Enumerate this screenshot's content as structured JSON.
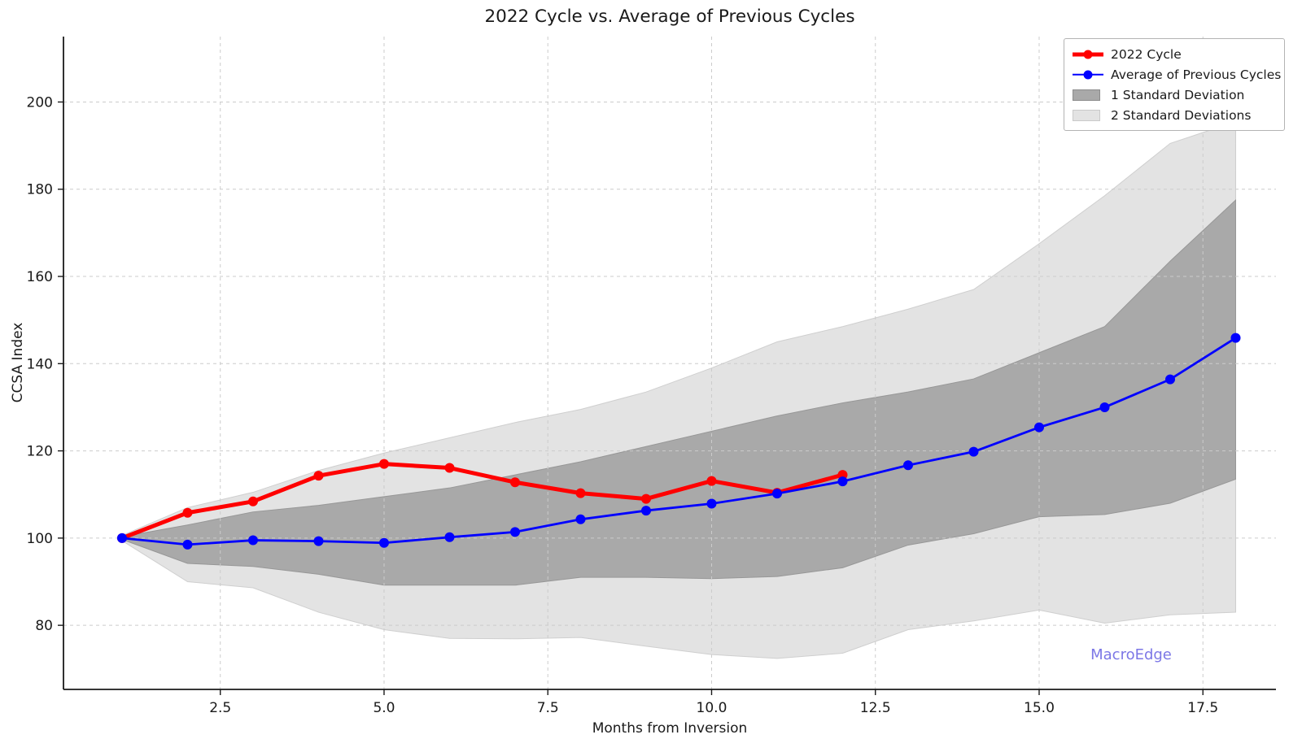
{
  "page": {
    "title": "2022 Cycle vs. Average of Previous Cycles"
  },
  "axes": {
    "x_label": "Months from Inversion",
    "y_label": "CCSA Index",
    "x_ticks": [
      {
        "v": 2.5,
        "label": "2.5"
      },
      {
        "v": 5,
        "label": "5.0"
      },
      {
        "v": 7.5,
        "label": "7.5"
      },
      {
        "v": 10,
        "label": "10.0"
      },
      {
        "v": 12.5,
        "label": "12.5"
      },
      {
        "v": 15,
        "label": "15.0"
      },
      {
        "v": 17.5,
        "label": "17.5"
      }
    ],
    "y_ticks": [
      {
        "v": 80,
        "label": "80"
      },
      {
        "v": 100,
        "label": "100"
      },
      {
        "v": 120,
        "label": "120"
      },
      {
        "v": 140,
        "label": "140"
      },
      {
        "v": 160,
        "label": "160"
      },
      {
        "v": 180,
        "label": "180"
      },
      {
        "v": 200,
        "label": "200"
      }
    ]
  },
  "legend": {
    "items": [
      {
        "label": "2022 Cycle",
        "swatch": "line",
        "color": "#ff0000",
        "lw": 5
      },
      {
        "label": "Average of Previous Cycles",
        "swatch": "line",
        "color": "#0000ff",
        "lw": 2.5
      },
      {
        "label": "1 Standard Deviation",
        "swatch": "patch",
        "color": "#a9a9a9",
        "edge": "#8c8c8c"
      },
      {
        "label": "2 Standard Deviations",
        "swatch": "patch",
        "color": "#e3e3e3",
        "edge": "#c9c9c9"
      }
    ]
  },
  "watermark": {
    "text": "MacroEdge",
    "color": "#7c77e6"
  },
  "chart_data": {
    "type": "line",
    "title": "2022 Cycle vs. Average of Previous Cycles",
    "xlabel": "Months from Inversion",
    "ylabel": "CCSA Index",
    "x": [
      1,
      2,
      3,
      4,
      5,
      6,
      7,
      8,
      9,
      10,
      11,
      12,
      13,
      14,
      15,
      16,
      17,
      18
    ],
    "series": [
      {
        "name": "2022 Cycle",
        "color": "#ff0000",
        "x": [
          1,
          2,
          3,
          4,
          5,
          6,
          7,
          8,
          9,
          10,
          11,
          12
        ],
        "values": [
          100,
          105.8,
          108.4,
          114.3,
          117.0,
          116.1,
          112.8,
          110.3,
          109.0,
          113.1,
          110.4,
          114.5
        ]
      },
      {
        "name": "Average of Previous Cycles",
        "color": "#0000ff",
        "x": [
          1,
          2,
          3,
          4,
          5,
          6,
          7,
          8,
          9,
          10,
          11,
          12,
          13,
          14,
          15,
          16,
          17,
          18
        ],
        "values": [
          100,
          98.5,
          99.5,
          99.3,
          98.9,
          100.2,
          101.4,
          104.3,
          106.3,
          107.9,
          110.2,
          113.0,
          116.7,
          119.8,
          125.4,
          130.0,
          136.4,
          145.9
        ]
      }
    ],
    "bands": [
      {
        "name": "2 Standard Deviations",
        "color": "#e3e3e3",
        "edge": "#cfcfcf",
        "x": [
          1,
          2,
          3,
          4,
          5,
          6,
          7,
          8,
          9,
          10,
          11,
          12,
          13,
          14,
          15,
          16,
          17,
          18
        ],
        "upper": [
          100.6,
          107.0,
          110.5,
          115.5,
          119.5,
          123.0,
          126.5,
          129.5,
          133.5,
          139.0,
          145.0,
          148.5,
          152.5,
          157.0,
          167.5,
          178.5,
          190.5,
          195.5
        ],
        "lower": [
          99.4,
          90.0,
          88.6,
          83.0,
          79.0,
          77.0,
          76.9,
          77.2,
          75.2,
          73.3,
          72.4,
          73.6,
          79.0,
          81.0,
          83.5,
          80.5,
          82.4,
          83.0
        ]
      },
      {
        "name": "1 Standard Deviation",
        "color": "#a9a9a9",
        "edge": "#979797",
        "x": [
          1,
          2,
          3,
          4,
          5,
          6,
          7,
          8,
          9,
          10,
          11,
          12,
          13,
          14,
          15,
          16,
          17,
          18
        ],
        "upper": [
          100.3,
          103.0,
          106.0,
          107.5,
          109.5,
          111.5,
          114.5,
          117.5,
          121.0,
          124.5,
          128.0,
          131.0,
          133.5,
          136.5,
          142.5,
          148.5,
          163.5,
          177.5
        ],
        "lower": [
          99.7,
          94.2,
          93.5,
          91.7,
          89.2,
          89.2,
          89.2,
          91.0,
          91.0,
          90.7,
          91.2,
          93.2,
          98.4,
          101.0,
          104.9,
          105.4,
          108.0,
          113.5
        ]
      }
    ],
    "xlim": [
      0.106,
      18.615
    ],
    "ylim": [
      65.3,
      215.0
    ],
    "grid": true,
    "grid_style": "dashed",
    "legend_position": "upper right"
  }
}
